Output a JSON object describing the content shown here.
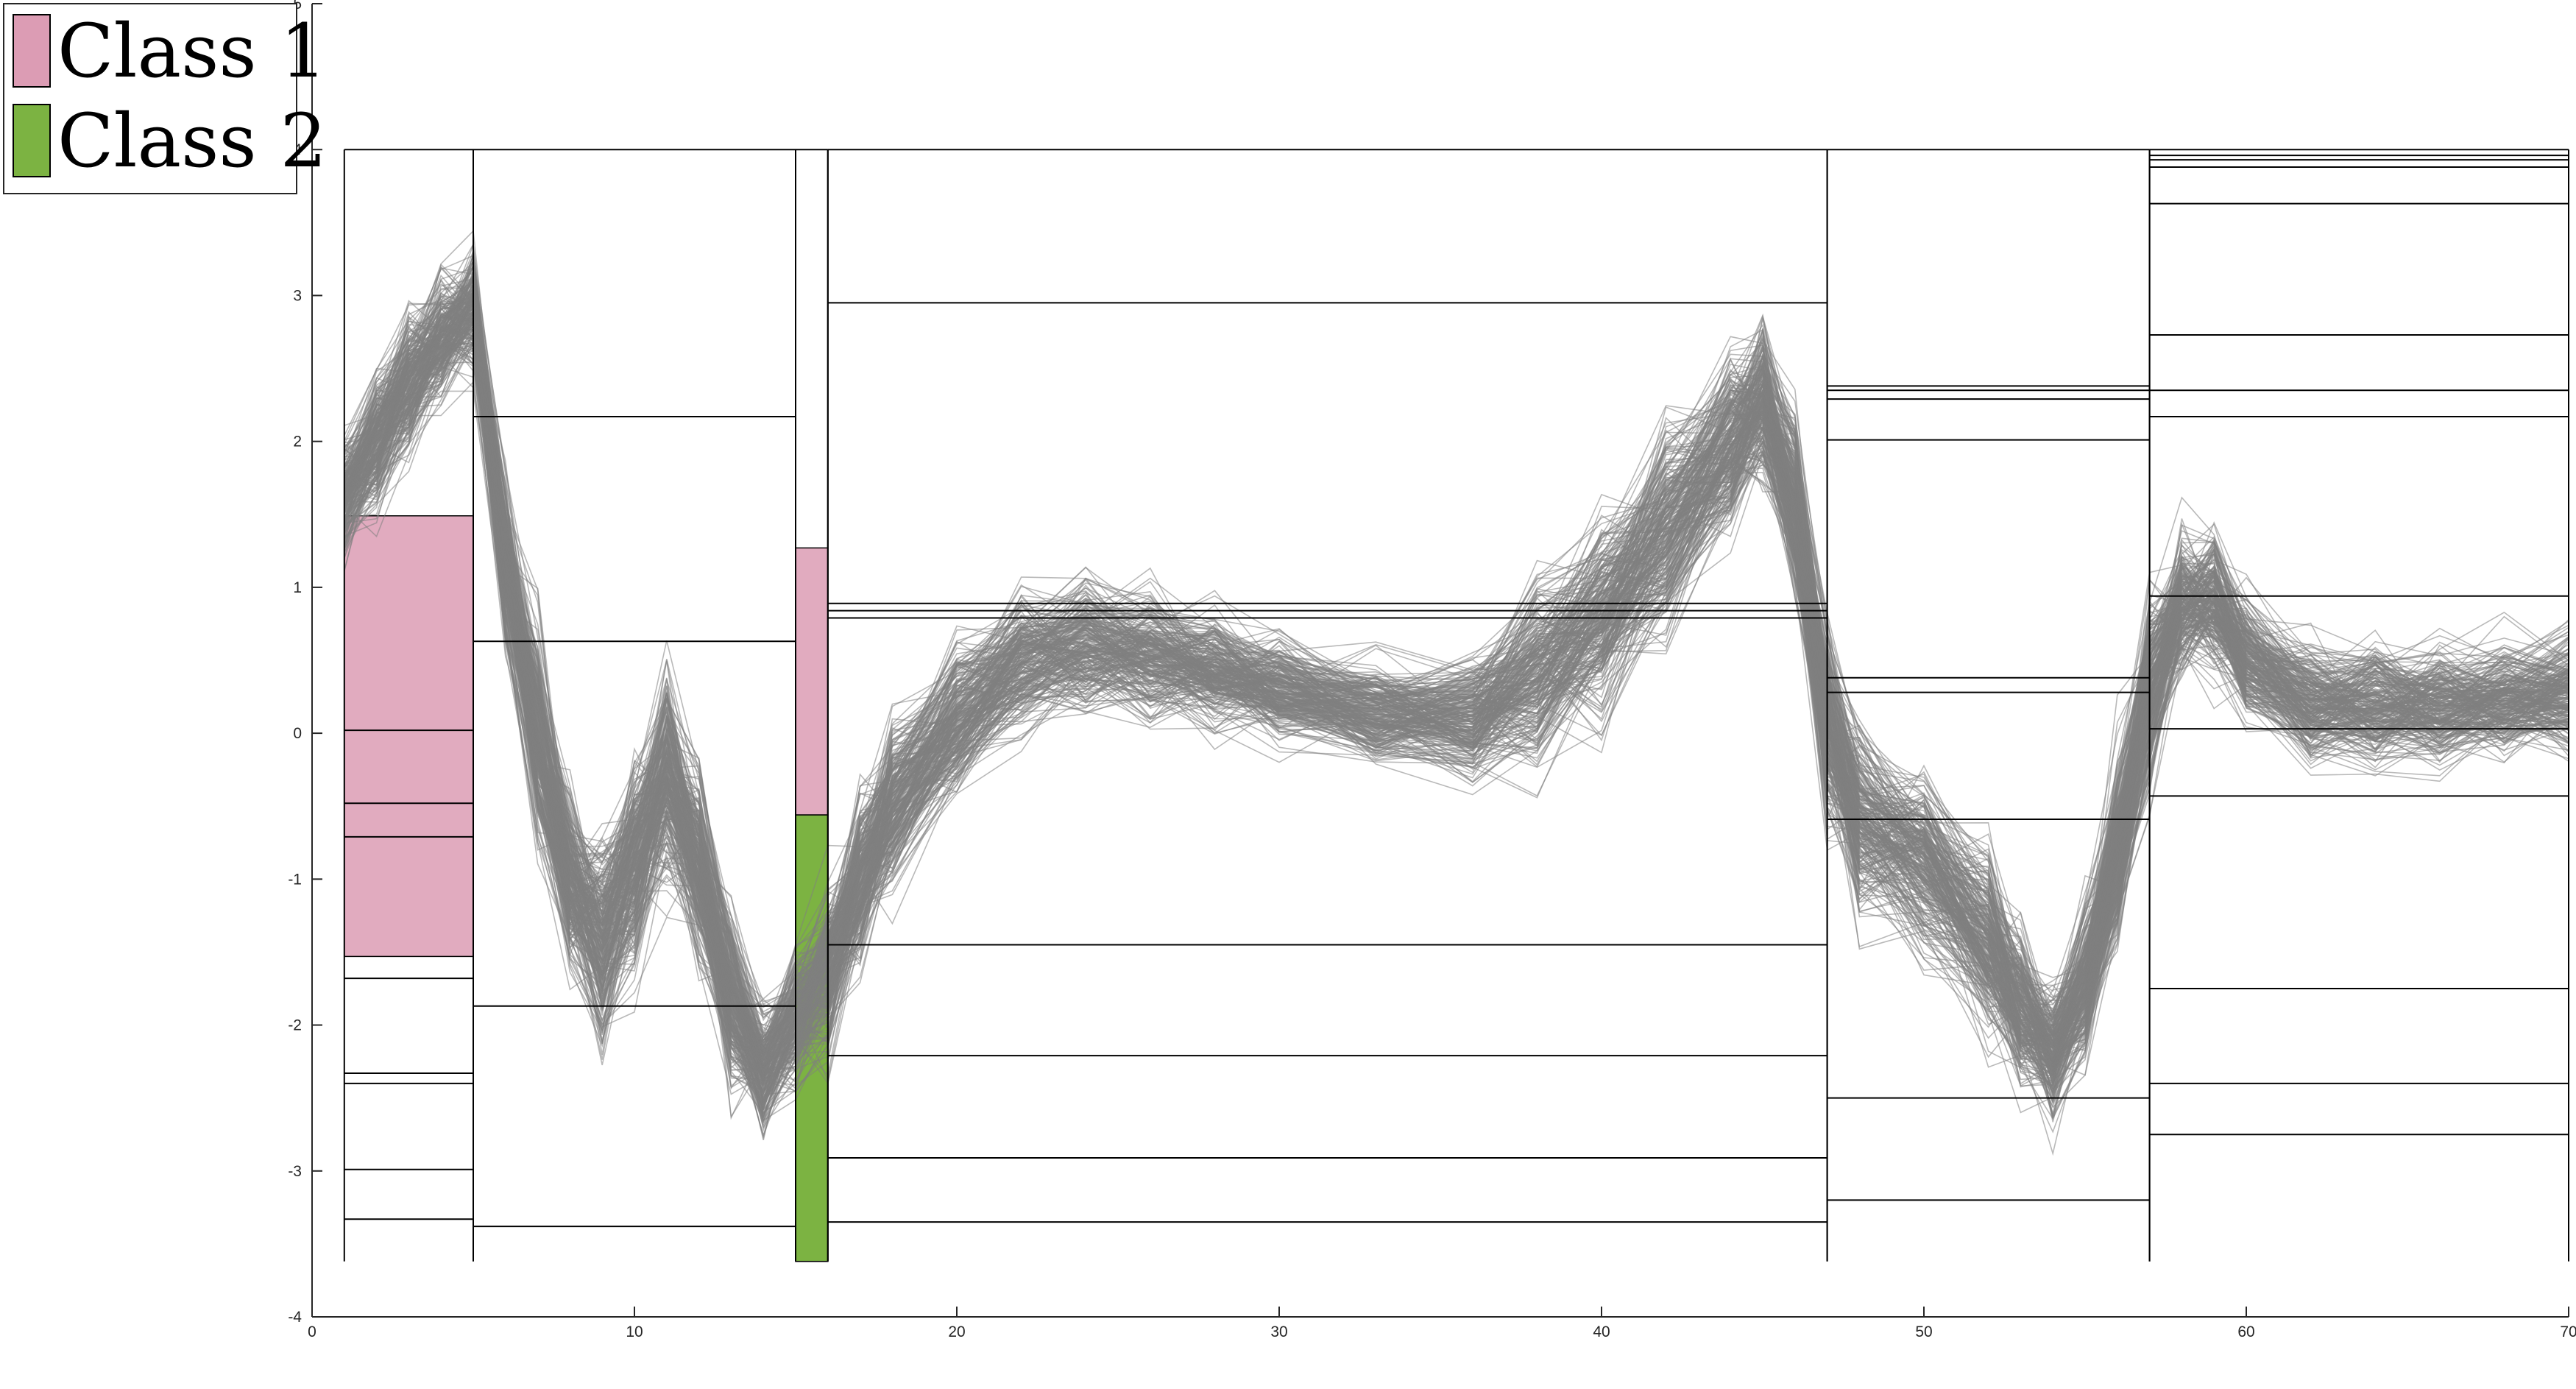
{
  "chart_data": {
    "type": "line",
    "description_series": "parallel-coordinates style plot of many gray sample curves over 70 feature indices with interval boxes per segment",
    "xlim": [
      0,
      70
    ],
    "ylim": [
      -4,
      5
    ],
    "x_ticks": [
      0,
      10,
      20,
      30,
      40,
      50,
      60,
      70
    ],
    "y_ticks": [
      -4,
      -3,
      -2,
      -1,
      0,
      1,
      2,
      3,
      4,
      5
    ],
    "grid": false,
    "legend_position": "top-left",
    "legend": [
      {
        "label": "Class 1",
        "color": "#dc9cb4"
      },
      {
        "label": "Class 2",
        "color": "#7cb342"
      }
    ],
    "line_color": "#808080",
    "box_top": 4,
    "box_bottom": -3.62,
    "segments": [
      {
        "x0": 1,
        "x1": 5,
        "levels": [
          -1.68,
          -2.33,
          -2.4,
          -2.99,
          -3.33,
          -0.71,
          -0.48,
          0.02
        ],
        "class_region": {
          "class": "Class 1",
          "y0": -1.53,
          "y1": 1.49
        }
      },
      {
        "x0": 5,
        "x1": 15,
        "levels": [
          2.17,
          0.63,
          -1.87,
          -3.38
        ]
      },
      {
        "x0": 15,
        "x1": 16,
        "levels": [],
        "class_regions": [
          {
            "class": "Class 1",
            "y0": -0.56,
            "y1": 1.27
          },
          {
            "class": "Class 2",
            "y0": -3.62,
            "y1": -0.56
          }
        ]
      },
      {
        "x0": 16,
        "x1": 47,
        "levels": [
          2.95,
          0.89,
          0.84,
          0.79,
          -1.45,
          -2.21,
          -2.91,
          -3.35
        ]
      },
      {
        "x0": 47,
        "x1": 57,
        "levels": [
          2.38,
          2.35,
          2.29,
          2.01,
          0.38,
          0.28,
          -0.59,
          -2.5,
          -3.2
        ]
      },
      {
        "x0": 57,
        "x1": 70,
        "levels": [
          3.96,
          3.93,
          3.88,
          3.63,
          2.73,
          2.35,
          2.17,
          0.94,
          0.03,
          -0.43,
          -1.75,
          -2.4,
          -2.75
        ]
      }
    ],
    "mean_profile": {
      "x": [
        1,
        2,
        3,
        4,
        5,
        6,
        7,
        8,
        9,
        10,
        11,
        12,
        13,
        14,
        15,
        16,
        17,
        18,
        20,
        22,
        24,
        26,
        28,
        30,
        33,
        36,
        38,
        40,
        42,
        44,
        45,
        46,
        47,
        48,
        50,
        52,
        53,
        54,
        55,
        56,
        57,
        58,
        59,
        60,
        62,
        64,
        66,
        68,
        70
      ],
      "y": [
        1.6,
        2.0,
        2.4,
        2.7,
        2.9,
        1.2,
        0.0,
        -1.0,
        -1.4,
        -0.9,
        -0.3,
        -0.9,
        -1.8,
        -2.3,
        -1.9,
        -1.6,
        -1.0,
        -0.5,
        0.1,
        0.5,
        0.6,
        0.55,
        0.45,
        0.3,
        0.15,
        0.1,
        0.4,
        0.8,
        1.4,
        2.0,
        2.3,
        1.6,
        0.1,
        -0.6,
        -0.9,
        -1.4,
        -1.9,
        -2.2,
        -1.7,
        -0.8,
        0.3,
        0.9,
        0.9,
        0.5,
        0.2,
        0.2,
        0.2,
        0.25,
        0.3
      ]
    },
    "spread": [
      0.35,
      0.4,
      0.4,
      0.35,
      0.35,
      0.5,
      0.6,
      0.5,
      0.55,
      0.6,
      0.6,
      0.55,
      0.5,
      0.35,
      0.4,
      0.5,
      0.5,
      0.5,
      0.45,
      0.4,
      0.4,
      0.35,
      0.35,
      0.3,
      0.3,
      0.35,
      0.55,
      0.6,
      0.6,
      0.5,
      0.45,
      0.55,
      0.6,
      0.55,
      0.55,
      0.55,
      0.45,
      0.4,
      0.45,
      0.55,
      0.55,
      0.4,
      0.4,
      0.35,
      0.35,
      0.35,
      0.35,
      0.35,
      0.35
    ],
    "n_curves": 260
  }
}
